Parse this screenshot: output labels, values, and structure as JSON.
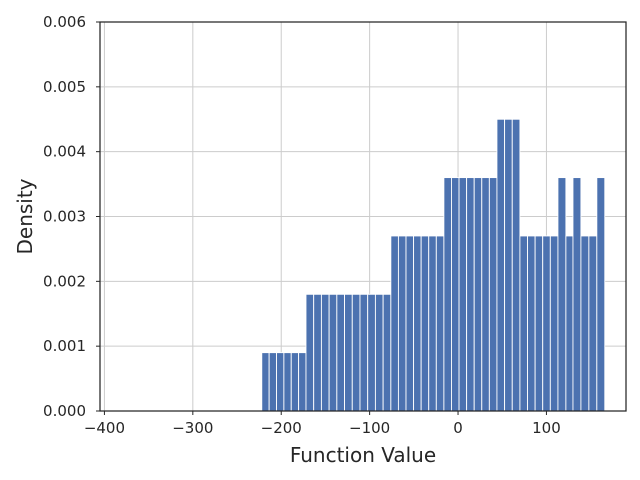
{
  "chart_data": {
    "type": "bar",
    "subtype": "histogram",
    "title": "",
    "xlabel": "Function Value",
    "ylabel": "Density",
    "xlim": [
      -405,
      190
    ],
    "ylim": [
      0,
      0.006
    ],
    "x_ticks": [
      -400,
      -300,
      -200,
      -100,
      0,
      100
    ],
    "x_tick_labels": [
      "−400",
      "−300",
      "−200",
      "−100",
      "0",
      "100"
    ],
    "y_ticks": [
      0,
      0.001,
      0.002,
      0.003,
      0.004,
      0.005,
      0.006
    ],
    "y_tick_labels": [
      "0.000",
      "0.001",
      "0.002",
      "0.003",
      "0.004",
      "0.005",
      "0.006"
    ],
    "grid": true,
    "bar_color": "#4c72b0",
    "bins": [
      {
        "start": -222,
        "end": -172,
        "value": 0.0009
      },
      {
        "start": -172,
        "end": -76,
        "value": 0.0018
      },
      {
        "start": -76,
        "end": -16,
        "value": 0.0027
      },
      {
        "start": -16,
        "end": 44,
        "value": 0.0036
      },
      {
        "start": 44,
        "end": 70,
        "value": 0.0045
      },
      {
        "start": 70,
        "end": 113,
        "value": 0.0027
      },
      {
        "start": 113,
        "end": 122,
        "value": 0.0036
      },
      {
        "start": 122,
        "end": 130,
        "value": 0.0027
      },
      {
        "start": 130,
        "end": 139,
        "value": 0.0036
      },
      {
        "start": 139,
        "end": 157,
        "value": 0.0027
      },
      {
        "start": 157,
        "end": 166,
        "value": 0.0036
      }
    ],
    "bar_width": 8.6
  }
}
